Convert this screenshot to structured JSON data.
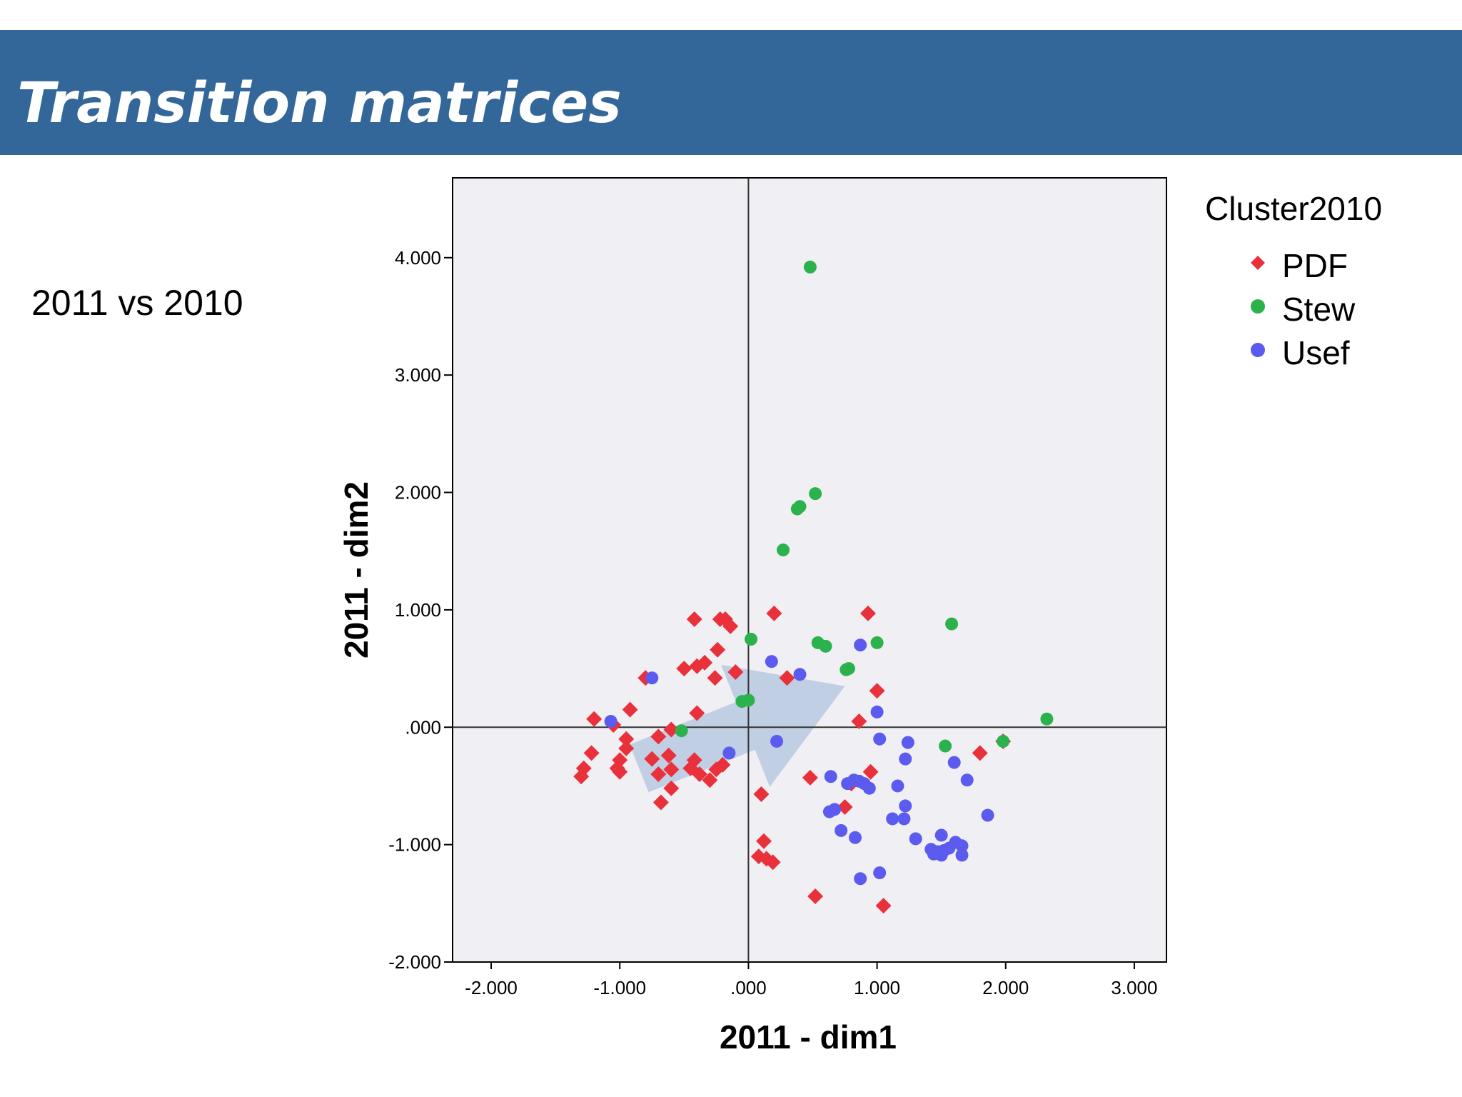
{
  "slide": {
    "title": "Transition matrices",
    "subtitle": "2011 vs 2010"
  },
  "colors": {
    "header_bg": "#336699",
    "plot_bg": "#f0eff3",
    "PDF": "#e8313b",
    "Stew": "#2bb24c",
    "Usef": "#5b5bf0",
    "arrow": "#b8c9e1"
  },
  "chart_data": {
    "type": "scatter",
    "xlabel": "2011 - dim1",
    "ylabel": "2011 - dim2",
    "xlim": [
      -2.3,
      3.25
    ],
    "ylim": [
      -2.0,
      4.68
    ],
    "x_ticks": [
      {
        "value": -2,
        "label": "-2.000"
      },
      {
        "value": -1,
        "label": "-1.000"
      },
      {
        "value": 0,
        "label": ".000"
      },
      {
        "value": 1,
        "label": "1.000"
      },
      {
        "value": 2,
        "label": "2.000"
      },
      {
        "value": 3,
        "label": "3.000"
      }
    ],
    "y_ticks": [
      {
        "value": -2,
        "label": "-2.000"
      },
      {
        "value": -1,
        "label": "-1.000"
      },
      {
        "value": 0,
        "label": ".000"
      },
      {
        "value": 1,
        "label": "1.000"
      },
      {
        "value": 2,
        "label": "2.000"
      },
      {
        "value": 3,
        "label": "3.000"
      },
      {
        "value": 4,
        "label": "4.000"
      }
    ],
    "reference_lines": {
      "x": 0,
      "y": 0
    },
    "legend": {
      "title": "Cluster2010",
      "position": "right",
      "entries": [
        {
          "name": "PDF",
          "marker": "diamond"
        },
        {
          "name": "Stew",
          "marker": "circle"
        },
        {
          "name": "Usef",
          "marker": "circle"
        }
      ]
    },
    "arrow": {
      "from": [
        -0.85,
        -0.35
      ],
      "to": [
        0.75,
        0.35
      ]
    },
    "series": [
      {
        "name": "PDF",
        "marker": "diamond",
        "points": [
          [
            -0.42,
            0.92
          ],
          [
            -0.22,
            0.92
          ],
          [
            -0.18,
            0.92
          ],
          [
            -0.14,
            0.86
          ],
          [
            -0.24,
            0.66
          ],
          [
            0.2,
            0.97
          ],
          [
            0.93,
            0.97
          ],
          [
            -0.5,
            0.5
          ],
          [
            -0.4,
            0.52
          ],
          [
            -0.34,
            0.55
          ],
          [
            -0.26,
            0.42
          ],
          [
            -0.1,
            0.47
          ],
          [
            0.3,
            0.42
          ],
          [
            1.0,
            0.31
          ],
          [
            -0.8,
            0.42
          ],
          [
            -0.92,
            0.15
          ],
          [
            -1.2,
            0.07
          ],
          [
            -0.4,
            0.12
          ],
          [
            0.86,
            0.05
          ],
          [
            -1.05,
            0.02
          ],
          [
            -0.95,
            -0.1
          ],
          [
            -0.7,
            -0.08
          ],
          [
            -0.6,
            -0.02
          ],
          [
            -0.95,
            -0.18
          ],
          [
            -1.22,
            -0.22
          ],
          [
            -1.0,
            -0.28
          ],
          [
            -0.75,
            -0.27
          ],
          [
            -0.62,
            -0.24
          ],
          [
            -0.42,
            -0.28
          ],
          [
            -1.28,
            -0.35
          ],
          [
            -1.3,
            -0.42
          ],
          [
            -1.02,
            -0.35
          ],
          [
            -1.0,
            -0.38
          ],
          [
            -0.7,
            -0.4
          ],
          [
            -0.6,
            -0.36
          ],
          [
            -0.45,
            -0.35
          ],
          [
            -0.38,
            -0.4
          ],
          [
            -0.25,
            -0.36
          ],
          [
            -0.2,
            -0.32
          ],
          [
            -0.3,
            -0.45
          ],
          [
            -0.6,
            -0.52
          ],
          [
            -0.68,
            -0.64
          ],
          [
            0.1,
            -0.57
          ],
          [
            0.48,
            -0.43
          ],
          [
            0.95,
            -0.38
          ],
          [
            0.8,
            -0.48
          ],
          [
            0.75,
            -0.68
          ],
          [
            1.8,
            -0.22
          ],
          [
            1.98,
            -0.12
          ],
          [
            0.12,
            -0.97
          ],
          [
            0.08,
            -1.1
          ],
          [
            0.14,
            -1.12
          ],
          [
            0.19,
            -1.15
          ],
          [
            0.52,
            -1.44
          ],
          [
            1.05,
            -1.52
          ]
        ]
      },
      {
        "name": "Stew",
        "marker": "circle",
        "points": [
          [
            0.48,
            3.92
          ],
          [
            0.52,
            1.99
          ],
          [
            0.4,
            1.88
          ],
          [
            0.38,
            1.86
          ],
          [
            0.27,
            1.51
          ],
          [
            1.58,
            0.88
          ],
          [
            0.02,
            0.75
          ],
          [
            0.54,
            0.72
          ],
          [
            0.6,
            0.69
          ],
          [
            1.0,
            0.72
          ],
          [
            0.78,
            0.5
          ],
          [
            0.76,
            0.49
          ],
          [
            -0.05,
            0.22
          ],
          [
            0.0,
            0.23
          ],
          [
            2.32,
            0.07
          ],
          [
            -0.52,
            -0.03
          ],
          [
            1.53,
            -0.16
          ],
          [
            1.98,
            -0.12
          ]
        ]
      },
      {
        "name": "Usef",
        "marker": "circle",
        "points": [
          [
            -0.75,
            0.42
          ],
          [
            -1.07,
            0.05
          ],
          [
            0.18,
            0.56
          ],
          [
            0.4,
            0.45
          ],
          [
            0.87,
            0.7
          ],
          [
            1.0,
            0.13
          ],
          [
            0.22,
            -0.12
          ],
          [
            1.02,
            -0.1
          ],
          [
            1.24,
            -0.13
          ],
          [
            1.22,
            -0.27
          ],
          [
            -0.15,
            -0.22
          ],
          [
            1.6,
            -0.3
          ],
          [
            1.7,
            -0.45
          ],
          [
            0.64,
            -0.42
          ],
          [
            0.77,
            -0.48
          ],
          [
            0.82,
            -0.45
          ],
          [
            0.86,
            -0.46
          ],
          [
            0.9,
            -0.48
          ],
          [
            0.94,
            -0.52
          ],
          [
            1.16,
            -0.5
          ],
          [
            0.63,
            -0.72
          ],
          [
            0.67,
            -0.7
          ],
          [
            1.22,
            -0.67
          ],
          [
            1.86,
            -0.75
          ],
          [
            1.12,
            -0.78
          ],
          [
            1.21,
            -0.78
          ],
          [
            0.72,
            -0.88
          ],
          [
            0.83,
            -0.94
          ],
          [
            1.3,
            -0.95
          ],
          [
            1.5,
            -0.92
          ],
          [
            1.42,
            -1.04
          ],
          [
            1.47,
            -1.06
          ],
          [
            1.52,
            -1.05
          ],
          [
            1.5,
            -1.09
          ],
          [
            1.44,
            -1.08
          ],
          [
            1.56,
            -1.03
          ],
          [
            1.61,
            -0.98
          ],
          [
            1.66,
            -1.01
          ],
          [
            1.66,
            -1.09
          ],
          [
            0.87,
            -1.29
          ],
          [
            1.02,
            -1.24
          ]
        ]
      }
    ]
  }
}
